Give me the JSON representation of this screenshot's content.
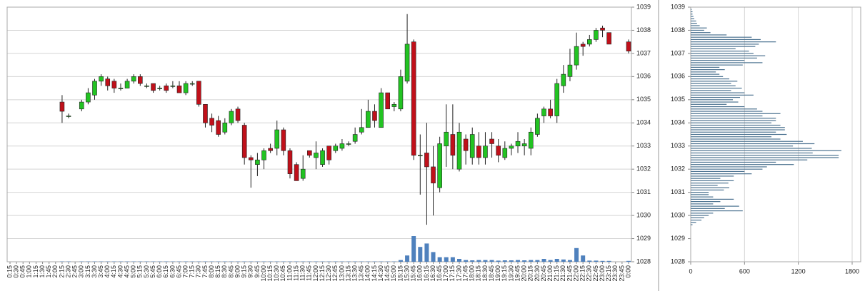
{
  "chart_data": [
    {
      "type": "candlestick",
      "categories": [
        "0:15",
        "0:30",
        "0:45",
        "1:00",
        "1:15",
        "1:30",
        "1:45",
        "2:00",
        "2:15",
        "2:30",
        "2:45",
        "3:00",
        "3:15",
        "3:30",
        "3:45",
        "4:00",
        "4:15",
        "4:30",
        "4:45",
        "5:00",
        "5:15",
        "5:30",
        "5:45",
        "6:00",
        "6:15",
        "6:30",
        "6:45",
        "7:00",
        "7:15",
        "7:30",
        "7:45",
        "8:00",
        "8:15",
        "8:30",
        "8:45",
        "9:00",
        "9:15",
        "9:30",
        "9:45",
        "10:00",
        "10:15",
        "10:30",
        "10:45",
        "11:00",
        "11:15",
        "11:30",
        "11:45",
        "12:00",
        "12:15",
        "12:30",
        "12:45",
        "13:00",
        "13:15",
        "13:30",
        "13:45",
        "14:00",
        "14:15",
        "14:30",
        "14:45",
        "15:00",
        "15:15",
        "15:30",
        "15:45",
        "16:00",
        "16:15",
        "16:30",
        "16:45",
        "17:00",
        "17:15",
        "17:30",
        "17:45",
        "18:00",
        "18:15",
        "18:30",
        "18:45",
        "19:00",
        "19:15",
        "19:30",
        "19:45",
        "20:00",
        "20:15",
        "20:30",
        "20:45",
        "21:00",
        "21:15",
        "21:30",
        "21:45",
        "22:00",
        "22:15",
        "22:30",
        "22:45",
        "23:00",
        "23:15",
        "23:30",
        "23:45",
        "0:00"
      ],
      "open": [
        null,
        null,
        null,
        null,
        null,
        null,
        null,
        null,
        1034.9,
        1034.3,
        null,
        1034.6,
        1034.9,
        1035.2,
        1035.8,
        1035.9,
        1035.8,
        1035.5,
        1035.5,
        1035.8,
        1036.0,
        1035.6,
        1035.7,
        1035.5,
        1035.6,
        1035.6,
        1035.6,
        1035.3,
        1035.7,
        1035.8,
        1034.8,
        1034.2,
        1034.1,
        1033.6,
        1034.0,
        1034.6,
        1033.9,
        1032.5,
        1032.2,
        1032.4,
        1032.9,
        1032.9,
        1033.7,
        1032.8,
        1032.2,
        1031.6,
        1032.8,
        1032.5,
        1032.2,
        1033.0,
        1032.8,
        1032.9,
        1033.1,
        1033.2,
        1033.6,
        1033.8,
        1034.5,
        1033.8,
        1035.3,
        1034.7,
        1034.6,
        1035.8,
        1037.5,
        1032.6,
        1032.7,
        1032.1,
        1031.2,
        1033.0,
        1033.5,
        1032.0,
        1033.3,
        1032.5,
        1033.0,
        1032.5,
        1033.3,
        1033.0,
        1032.5,
        1032.9,
        1033.0,
        1033.0,
        1032.9,
        1033.5,
        1034.3,
        1034.6,
        1034.3,
        1035.6,
        1036.0,
        1036.5,
        1037.4,
        1037.4,
        1037.6,
        1038.1,
        1037.9,
        null,
        null,
        1037.5
      ],
      "high": [
        null,
        null,
        null,
        null,
        null,
        null,
        null,
        null,
        1035.2,
        1034.4,
        null,
        1035.0,
        1035.5,
        1035.9,
        1036.1,
        1036.0,
        1035.9,
        1035.7,
        1035.9,
        1036.1,
        1036.1,
        1035.7,
        1035.7,
        1035.6,
        1035.7,
        1035.8,
        1035.8,
        1035.8,
        1035.8,
        1035.8,
        1034.8,
        1034.4,
        1034.3,
        1034.2,
        1034.6,
        1034.7,
        1034.0,
        1032.6,
        1032.7,
        1032.9,
        1033.1,
        1034.1,
        1033.8,
        1032.9,
        1032.3,
        1032.6,
        1032.8,
        1033.2,
        1032.9,
        1033.0,
        1033.1,
        1033.3,
        1033.2,
        1033.8,
        1034.6,
        1035.0,
        1034.8,
        1035.5,
        1035.3,
        1034.9,
        1036.3,
        1038.7,
        1037.6,
        1033.5,
        1034.0,
        1033.0,
        1033.4,
        1034.8,
        1034.8,
        1034.0,
        1033.5,
        1033.8,
        1033.6,
        1033.6,
        1033.6,
        1033.3,
        1033.2,
        1033.1,
        1033.6,
        1033.3,
        1033.8,
        1034.4,
        1034.7,
        1035.0,
        1035.9,
        1036.5,
        1037.2,
        1037.9,
        1037.5,
        1037.8,
        1038.1,
        1038.2,
        1037.9,
        null,
        null,
        1037.6
      ],
      "low": [
        null,
        null,
        null,
        null,
        null,
        null,
        null,
        null,
        1034.0,
        1034.2,
        null,
        1034.5,
        1034.8,
        1035.0,
        1035.6,
        1035.4,
        1035.3,
        1035.4,
        1035.5,
        1035.7,
        1035.6,
        1035.5,
        1035.3,
        1035.4,
        1035.3,
        1035.5,
        1035.3,
        1035.2,
        1035.6,
        1034.7,
        1033.8,
        1033.6,
        1033.4,
        1033.5,
        1033.9,
        1034.0,
        1032.2,
        1031.2,
        1031.7,
        1032.0,
        1032.7,
        1032.6,
        1032.6,
        1031.6,
        1031.5,
        1031.5,
        1032.5,
        1032.0,
        1032.1,
        1032.2,
        1032.7,
        1032.8,
        1033.0,
        1033.1,
        1033.5,
        1033.8,
        1033.8,
        1033.8,
        1034.6,
        1034.5,
        1034.5,
        1035.7,
        1032.4,
        1030.9,
        1029.6,
        1030.0,
        1031.0,
        1032.1,
        1032.0,
        1031.9,
        1032.2,
        1032.2,
        1032.2,
        1032.2,
        1032.5,
        1032.3,
        1032.4,
        1032.6,
        1032.7,
        1032.6,
        1032.6,
        1033.4,
        1034.0,
        1034.2,
        1034.0,
        1035.3,
        1035.8,
        1036.3,
        1036.9,
        1037.3,
        1037.5,
        1037.7,
        1037.4,
        null,
        null,
        1037.0
      ],
      "close": [
        null,
        null,
        null,
        null,
        null,
        null,
        null,
        null,
        1034.5,
        1034.3,
        null,
        1034.9,
        1035.3,
        1035.8,
        1036.0,
        1035.6,
        1035.5,
        1035.5,
        1035.8,
        1036.0,
        1035.7,
        1035.6,
        1035.4,
        1035.5,
        1035.4,
        1035.6,
        1035.3,
        1035.7,
        1035.7,
        1034.8,
        1034.0,
        1033.9,
        1033.5,
        1034.0,
        1034.5,
        1034.1,
        1032.5,
        1032.4,
        1032.4,
        1032.8,
        1032.8,
        1033.7,
        1032.8,
        1031.8,
        1031.5,
        1032.0,
        1032.6,
        1032.7,
        1032.8,
        1032.4,
        1033.0,
        1033.1,
        1033.1,
        1033.5,
        1033.8,
        1034.5,
        1034.1,
        1035.3,
        1034.6,
        1034.8,
        1036.0,
        1037.4,
        1032.6,
        1032.6,
        1032.1,
        1031.4,
        1033.1,
        1033.6,
        1032.6,
        1033.6,
        1032.8,
        1033.5,
        1032.5,
        1033.0,
        1033.1,
        1032.6,
        1032.9,
        1033.0,
        1033.2,
        1033.1,
        1033.6,
        1034.2,
        1034.6,
        1034.3,
        1035.7,
        1036.1,
        1036.5,
        1037.3,
        1037.3,
        1037.6,
        1038.0,
        1038.0,
        1037.4,
        null,
        null,
        1037.1
      ],
      "volume": [
        null,
        null,
        null,
        null,
        null,
        null,
        null,
        null,
        10,
        10,
        null,
        10,
        10,
        10,
        10,
        10,
        10,
        10,
        10,
        10,
        10,
        10,
        10,
        10,
        10,
        10,
        10,
        10,
        10,
        10,
        10,
        10,
        10,
        10,
        10,
        10,
        10,
        10,
        10,
        10,
        10,
        10,
        10,
        10,
        10,
        10,
        10,
        10,
        10,
        10,
        10,
        10,
        10,
        10,
        10,
        10,
        10,
        10,
        10,
        10,
        60,
        220,
        900,
        520,
        640,
        340,
        160,
        160,
        160,
        100,
        60,
        50,
        60,
        60,
        60,
        40,
        50,
        50,
        60,
        50,
        60,
        60,
        100,
        60,
        100,
        80,
        60,
        480,
        220,
        40,
        40,
        30,
        30,
        null,
        null,
        30
      ],
      "up_color": "#22c322",
      "down_color": "#c0101a",
      "volume_color": "#4f81bd",
      "ylim": [
        1028,
        1039
      ],
      "yticks": [
        1028,
        1029,
        1030,
        1031,
        1032,
        1033,
        1034,
        1035,
        1036,
        1037,
        1038,
        1039
      ],
      "grid": true
    },
    {
      "type": "profile",
      "y": [
        1038.9,
        1038.8,
        1038.7,
        1038.6,
        1038.5,
        1038.4,
        1038.3,
        1038.2,
        1038.1,
        1038.0,
        1037.9,
        1037.8,
        1037.7,
        1037.6,
        1037.5,
        1037.4,
        1037.3,
        1037.2,
        1037.1,
        1037.0,
        1036.9,
        1036.8,
        1036.7,
        1036.6,
        1036.5,
        1036.4,
        1036.3,
        1036.2,
        1036.1,
        1036.0,
        1035.9,
        1035.8,
        1035.7,
        1035.6,
        1035.5,
        1035.4,
        1035.3,
        1035.2,
        1035.1,
        1035.0,
        1034.9,
        1034.8,
        1034.7,
        1034.6,
        1034.5,
        1034.4,
        1034.3,
        1034.2,
        1034.1,
        1034.0,
        1033.9,
        1033.8,
        1033.7,
        1033.6,
        1033.5,
        1033.4,
        1033.3,
        1033.2,
        1033.1,
        1033.0,
        1032.9,
        1032.8,
        1032.7,
        1032.6,
        1032.5,
        1032.4,
        1032.3,
        1032.2,
        1032.1,
        1032.0,
        1031.9,
        1031.8,
        1031.7,
        1031.6,
        1031.5,
        1031.4,
        1031.3,
        1031.2,
        1031.1,
        1031.0,
        1030.9,
        1030.8,
        1030.7,
        1030.6,
        1030.5,
        1030.4,
        1030.3,
        1030.2,
        1030.1,
        1030.0,
        1029.9,
        1029.8,
        1029.7,
        1029.6
      ],
      "values": [
        10,
        20,
        20,
        30,
        40,
        60,
        70,
        100,
        180,
        150,
        220,
        400,
        680,
        780,
        950,
        760,
        720,
        500,
        650,
        700,
        830,
        740,
        600,
        800,
        580,
        320,
        380,
        280,
        320,
        360,
        430,
        520,
        450,
        500,
        570,
        450,
        600,
        700,
        550,
        470,
        530,
        400,
        600,
        740,
        800,
        1000,
        800,
        950,
        950,
        900,
        1000,
        1050,
        1050,
        950,
        1070,
        900,
        1000,
        1250,
        1380,
        1140,
        1350,
        1680,
        1360,
        1650,
        1650,
        1300,
        950,
        1150,
        850,
        800,
        600,
        680,
        480,
        330,
        480,
        420,
        300,
        430,
        370,
        200,
        200,
        250,
        480,
        330,
        250,
        540,
        380,
        580,
        250,
        200,
        150,
        120,
        60,
        20
      ],
      "color": "#4d7391",
      "xlim": [
        0,
        1800
      ],
      "xticks": [
        0,
        600,
        1200,
        1800
      ],
      "ylim": [
        1028,
        1039
      ],
      "yticks": [
        1028,
        1029,
        1030,
        1031,
        1032,
        1033,
        1034,
        1035,
        1036,
        1037,
        1038,
        1039
      ],
      "grid": true
    }
  ]
}
